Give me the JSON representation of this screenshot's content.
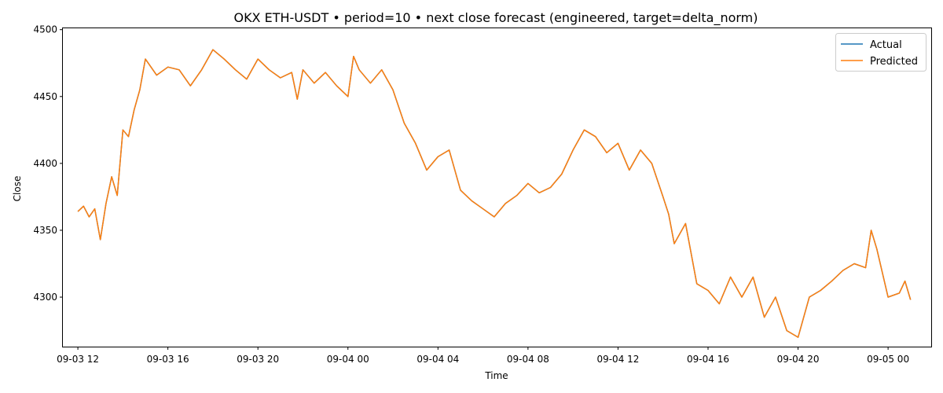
{
  "chart_data": {
    "type": "line",
    "title": "OKX ETH-USDT • period=10 • next close forecast (engineered, target=delta_norm)",
    "xlabel": "Time",
    "ylabel": "Close",
    "xlim": [
      "2025-09-03 11:20",
      "2025-09-05 01:55"
    ],
    "ylim": [
      4263,
      4501
    ],
    "x_ticks": [
      {
        "t": "2025-09-03 12:00",
        "label": "09-03 12"
      },
      {
        "t": "2025-09-03 16:00",
        "label": "09-03 16"
      },
      {
        "t": "2025-09-03 20:00",
        "label": "09-03 20"
      },
      {
        "t": "2025-09-04 00:00",
        "label": "09-04 00"
      },
      {
        "t": "2025-09-04 04:00",
        "label": "09-04 04"
      },
      {
        "t": "2025-09-04 08:00",
        "label": "09-04 08"
      },
      {
        "t": "2025-09-04 12:00",
        "label": "09-04 12"
      },
      {
        "t": "2025-09-04 16:00",
        "label": "09-04 16"
      },
      {
        "t": "2025-09-04 20:00",
        "label": "09-04 20"
      },
      {
        "t": "2025-09-05 00:00",
        "label": "09-05 00"
      }
    ],
    "y_ticks": [
      4300,
      4350,
      4400,
      4450,
      4500
    ],
    "legend": {
      "position": "top-right",
      "entries": [
        "Actual",
        "Predicted"
      ]
    },
    "colors": {
      "Actual": "#1f77b4",
      "Predicted": "#ff7f0e"
    },
    "grid": false,
    "series": [
      {
        "name": "Actual",
        "x": [
          "2025-09-03 12:00",
          "2025-09-03 12:15",
          "2025-09-03 12:30",
          "2025-09-03 12:45",
          "2025-09-03 13:00",
          "2025-09-03 13:15",
          "2025-09-03 13:30",
          "2025-09-03 13:45",
          "2025-09-03 14:00",
          "2025-09-03 14:15",
          "2025-09-03 14:30",
          "2025-09-03 14:45",
          "2025-09-03 15:00",
          "2025-09-03 15:30",
          "2025-09-03 16:00",
          "2025-09-03 16:30",
          "2025-09-03 17:00",
          "2025-09-03 17:30",
          "2025-09-03 18:00",
          "2025-09-03 18:30",
          "2025-09-03 19:00",
          "2025-09-03 19:30",
          "2025-09-03 20:00",
          "2025-09-03 20:30",
          "2025-09-03 21:00",
          "2025-09-03 21:30",
          "2025-09-03 21:45",
          "2025-09-03 22:00",
          "2025-09-03 22:30",
          "2025-09-03 23:00",
          "2025-09-03 23:30",
          "2025-09-04 00:00",
          "2025-09-04 00:15",
          "2025-09-04 00:30",
          "2025-09-04 01:00",
          "2025-09-04 01:30",
          "2025-09-04 02:00",
          "2025-09-04 02:30",
          "2025-09-04 03:00",
          "2025-09-04 03:30",
          "2025-09-04 04:00",
          "2025-09-04 04:30",
          "2025-09-04 05:00",
          "2025-09-04 05:30",
          "2025-09-04 06:00",
          "2025-09-04 06:30",
          "2025-09-04 07:00",
          "2025-09-04 07:30",
          "2025-09-04 08:00",
          "2025-09-04 08:30",
          "2025-09-04 09:00",
          "2025-09-04 09:30",
          "2025-09-04 10:00",
          "2025-09-04 10:30",
          "2025-09-04 11:00",
          "2025-09-04 11:30",
          "2025-09-04 12:00",
          "2025-09-04 12:30",
          "2025-09-04 13:00",
          "2025-09-04 13:30",
          "2025-09-04 14:00",
          "2025-09-04 14:15",
          "2025-09-04 14:30",
          "2025-09-04 15:00",
          "2025-09-04 15:30",
          "2025-09-04 16:00",
          "2025-09-04 16:30",
          "2025-09-04 17:00",
          "2025-09-04 17:30",
          "2025-09-04 18:00",
          "2025-09-04 18:30",
          "2025-09-04 19:00",
          "2025-09-04 19:30",
          "2025-09-04 20:00",
          "2025-09-04 20:30",
          "2025-09-04 21:00",
          "2025-09-04 21:30",
          "2025-09-04 22:00",
          "2025-09-04 22:30",
          "2025-09-04 23:00",
          "2025-09-04 23:15",
          "2025-09-04 23:30",
          "2025-09-05 00:00",
          "2025-09-05 00:30",
          "2025-09-05 00:45",
          "2025-09-05 01:00"
        ],
        "values": [
          4364,
          4368,
          4360,
          4366,
          4343,
          4370,
          4390,
          4376,
          4425,
          4420,
          4440,
          4455,
          4478,
          4466,
          4472,
          4470,
          4458,
          4470,
          4485,
          4478,
          4470,
          4463,
          4478,
          4470,
          4464,
          4468,
          4448,
          4470,
          4460,
          4468,
          4458,
          4450,
          4480,
          4470,
          4460,
          4470,
          4455,
          4430,
          4415,
          4395,
          4405,
          4410,
          4380,
          4372,
          4366,
          4360,
          4370,
          4376,
          4385,
          4378,
          4382,
          4392,
          4410,
          4425,
          4420,
          4408,
          4415,
          4395,
          4410,
          4400,
          4375,
          4362,
          4340,
          4355,
          4310,
          4305,
          4295,
          4315,
          4300,
          4315,
          4285,
          4300,
          4275,
          4270,
          4300,
          4305,
          4312,
          4320,
          4325,
          4322,
          4350,
          4336,
          4300,
          4303,
          4312,
          4298
        ]
      },
      {
        "name": "Predicted",
        "x": [
          "2025-09-03 12:00",
          "2025-09-03 12:15",
          "2025-09-03 12:30",
          "2025-09-03 12:45",
          "2025-09-03 13:00",
          "2025-09-03 13:15",
          "2025-09-03 13:30",
          "2025-09-03 13:45",
          "2025-09-03 14:00",
          "2025-09-03 14:15",
          "2025-09-03 14:30",
          "2025-09-03 14:45",
          "2025-09-03 15:00",
          "2025-09-03 15:30",
          "2025-09-03 16:00",
          "2025-09-03 16:30",
          "2025-09-03 17:00",
          "2025-09-03 17:30",
          "2025-09-03 18:00",
          "2025-09-03 18:30",
          "2025-09-03 19:00",
          "2025-09-03 19:30",
          "2025-09-03 20:00",
          "2025-09-03 20:30",
          "2025-09-03 21:00",
          "2025-09-03 21:30",
          "2025-09-03 21:45",
          "2025-09-03 22:00",
          "2025-09-03 22:30",
          "2025-09-03 23:00",
          "2025-09-03 23:30",
          "2025-09-04 00:00",
          "2025-09-04 00:15",
          "2025-09-04 00:30",
          "2025-09-04 01:00",
          "2025-09-04 01:30",
          "2025-09-04 02:00",
          "2025-09-04 02:30",
          "2025-09-04 03:00",
          "2025-09-04 03:30",
          "2025-09-04 04:00",
          "2025-09-04 04:30",
          "2025-09-04 05:00",
          "2025-09-04 05:30",
          "2025-09-04 06:00",
          "2025-09-04 06:30",
          "2025-09-04 07:00",
          "2025-09-04 07:30",
          "2025-09-04 08:00",
          "2025-09-04 08:30",
          "2025-09-04 09:00",
          "2025-09-04 09:30",
          "2025-09-04 10:00",
          "2025-09-04 10:30",
          "2025-09-04 11:00",
          "2025-09-04 11:30",
          "2025-09-04 12:00",
          "2025-09-04 12:30",
          "2025-09-04 13:00",
          "2025-09-04 13:30",
          "2025-09-04 14:00",
          "2025-09-04 14:15",
          "2025-09-04 14:30",
          "2025-09-04 15:00",
          "2025-09-04 15:30",
          "2025-09-04 16:00",
          "2025-09-04 16:30",
          "2025-09-04 17:00",
          "2025-09-04 17:30",
          "2025-09-04 18:00",
          "2025-09-04 18:30",
          "2025-09-04 19:00",
          "2025-09-04 19:30",
          "2025-09-04 20:00",
          "2025-09-04 20:30",
          "2025-09-04 21:00",
          "2025-09-04 21:30",
          "2025-09-04 22:00",
          "2025-09-04 22:30",
          "2025-09-04 23:00",
          "2025-09-04 23:15",
          "2025-09-04 23:30",
          "2025-09-05 00:00",
          "2025-09-05 00:30",
          "2025-09-05 00:45",
          "2025-09-05 01:00"
        ],
        "values": [
          4364,
          4368,
          4360,
          4366,
          4343,
          4370,
          4390,
          4376,
          4425,
          4420,
          4440,
          4455,
          4478,
          4466,
          4472,
          4470,
          4458,
          4470,
          4485,
          4478,
          4470,
          4463,
          4478,
          4470,
          4464,
          4468,
          4448,
          4470,
          4460,
          4468,
          4458,
          4450,
          4480,
          4470,
          4460,
          4470,
          4455,
          4430,
          4415,
          4395,
          4405,
          4410,
          4380,
          4372,
          4366,
          4360,
          4370,
          4376,
          4385,
          4378,
          4382,
          4392,
          4410,
          4425,
          4420,
          4408,
          4415,
          4395,
          4410,
          4400,
          4375,
          4362,
          4340,
          4355,
          4310,
          4305,
          4295,
          4315,
          4300,
          4315,
          4285,
          4300,
          4275,
          4270,
          4300,
          4305,
          4312,
          4320,
          4325,
          4322,
          4350,
          4336,
          4300,
          4303,
          4312,
          4298
        ]
      }
    ]
  }
}
